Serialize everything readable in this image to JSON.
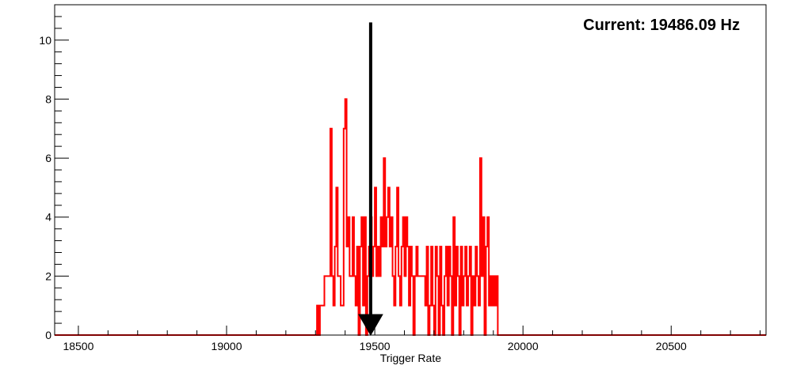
{
  "chart_data": {
    "type": "histogram",
    "title": "",
    "xlabel": "Trigger Rate",
    "ylabel": "",
    "xlim": [
      18420,
      20820
    ],
    "ylim": [
      0,
      11.2
    ],
    "xticks": [
      18500,
      19000,
      19500,
      20000,
      20500
    ],
    "yticks": [
      0,
      2,
      4,
      6,
      8,
      10
    ],
    "grid": false,
    "legend": "none",
    "series": [
      {
        "color": "#ff0000",
        "bin_width": 5,
        "bins": [
          [
            19300,
            0
          ],
          [
            19305,
            1
          ],
          [
            19310,
            0
          ],
          [
            19315,
            1
          ],
          [
            19320,
            1
          ],
          [
            19325,
            1
          ],
          [
            19330,
            2
          ],
          [
            19335,
            2
          ],
          [
            19340,
            2
          ],
          [
            19345,
            2
          ],
          [
            19350,
            7
          ],
          [
            19355,
            2
          ],
          [
            19360,
            1
          ],
          [
            19365,
            3
          ],
          [
            19370,
            5
          ],
          [
            19375,
            2
          ],
          [
            19380,
            2
          ],
          [
            19385,
            1
          ],
          [
            19390,
            1
          ],
          [
            19395,
            7
          ],
          [
            19400,
            8
          ],
          [
            19405,
            3
          ],
          [
            19410,
            4
          ],
          [
            19415,
            2
          ],
          [
            19420,
            2
          ],
          [
            19425,
            4
          ],
          [
            19430,
            2
          ],
          [
            19435,
            1
          ],
          [
            19440,
            3
          ],
          [
            19445,
            0
          ],
          [
            19450,
            3
          ],
          [
            19455,
            4
          ],
          [
            19460,
            1
          ],
          [
            19465,
            4
          ],
          [
            19470,
            0
          ],
          [
            19475,
            2
          ],
          [
            19480,
            3
          ],
          [
            19485,
            4
          ],
          [
            19490,
            2
          ],
          [
            19495,
            3
          ],
          [
            19500,
            5
          ],
          [
            19505,
            2
          ],
          [
            19510,
            3
          ],
          [
            19515,
            2
          ],
          [
            19520,
            4
          ],
          [
            19525,
            3
          ],
          [
            19530,
            6
          ],
          [
            19535,
            3
          ],
          [
            19540,
            4
          ],
          [
            19545,
            5
          ],
          [
            19550,
            3
          ],
          [
            19555,
            4
          ],
          [
            19560,
            2
          ],
          [
            19565,
            1
          ],
          [
            19570,
            3
          ],
          [
            19575,
            5
          ],
          [
            19580,
            2
          ],
          [
            19585,
            1
          ],
          [
            19590,
            3
          ],
          [
            19595,
            4
          ],
          [
            19600,
            2
          ],
          [
            19605,
            4
          ],
          [
            19610,
            3
          ],
          [
            19615,
            1
          ],
          [
            19620,
            3
          ],
          [
            19625,
            2
          ],
          [
            19630,
            0
          ],
          [
            19635,
            2
          ],
          [
            19640,
            3
          ],
          [
            19645,
            2
          ],
          [
            19650,
            2
          ],
          [
            19655,
            2
          ],
          [
            19660,
            2
          ],
          [
            19665,
            2
          ],
          [
            19670,
            1
          ],
          [
            19675,
            3
          ],
          [
            19680,
            0
          ],
          [
            19685,
            1
          ],
          [
            19690,
            3
          ],
          [
            19695,
            1
          ],
          [
            19700,
            0
          ],
          [
            19705,
            3
          ],
          [
            19710,
            2
          ],
          [
            19715,
            0
          ],
          [
            19720,
            3
          ],
          [
            19725,
            1
          ],
          [
            19730,
            0
          ],
          [
            19735,
            2
          ],
          [
            19740,
            3
          ],
          [
            19745,
            1
          ],
          [
            19750,
            3
          ],
          [
            19755,
            2
          ],
          [
            19760,
            0
          ],
          [
            19765,
            4
          ],
          [
            19770,
            1
          ],
          [
            19775,
            3
          ],
          [
            19780,
            2
          ],
          [
            19785,
            0
          ],
          [
            19790,
            3
          ],
          [
            19795,
            1
          ],
          [
            19800,
            2
          ],
          [
            19805,
            3
          ],
          [
            19810,
            1
          ],
          [
            19815,
            2
          ],
          [
            19820,
            3
          ],
          [
            19825,
            0
          ],
          [
            19830,
            2
          ],
          [
            19835,
            1
          ],
          [
            19840,
            3
          ],
          [
            19845,
            2
          ],
          [
            19850,
            1
          ],
          [
            19855,
            6
          ],
          [
            19860,
            2
          ],
          [
            19865,
            4
          ],
          [
            19870,
            0
          ],
          [
            19875,
            3
          ],
          [
            19880,
            4
          ],
          [
            19885,
            1
          ],
          [
            19890,
            2
          ],
          [
            19895,
            1
          ],
          [
            19900,
            2
          ],
          [
            19905,
            1
          ],
          [
            19910,
            2
          ],
          [
            19915,
            0
          ]
        ]
      }
    ],
    "annotations": [
      {
        "type": "text",
        "text": "Current: 19486.09 Hz",
        "position": "top-right"
      },
      {
        "type": "arrow",
        "x": 19486.09,
        "y_from": 10.6,
        "y_to": 0
      }
    ]
  }
}
